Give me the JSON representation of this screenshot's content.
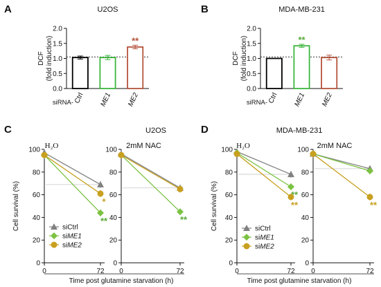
{
  "chart_data": [
    {
      "panel": "A",
      "type": "bar",
      "title": "U2OS",
      "ylabel": "DCF\n(fold induction)",
      "x_prefix": "siRNA-",
      "categories": [
        "Ctrl",
        "ME1",
        "ME2"
      ],
      "values": [
        1.03,
        1.03,
        1.38
      ],
      "errors": [
        0.05,
        0.07,
        0.06
      ],
      "ylim": [
        0,
        2.0
      ],
      "yticks": [
        "0.0",
        "0.5",
        "1.0",
        "1.5",
        "2.0"
      ],
      "ytick_values": [
        0,
        0.5,
        1.0,
        1.5,
        2.0
      ],
      "reference_line": 1.05,
      "annotations": [
        "",
        "",
        "**"
      ],
      "colors": [
        "#000000",
        "#3cb63c",
        "#b5533c"
      ]
    },
    {
      "panel": "B",
      "type": "bar",
      "title": "MDA-MB-231",
      "ylabel": "DCF\n(fold induction)",
      "x_prefix": "siRNA-",
      "categories": [
        "Ctrl",
        "ME1",
        "ME2"
      ],
      "values": [
        1.0,
        1.42,
        1.03
      ],
      "errors": [
        0.0,
        0.05,
        0.08
      ],
      "ylim": [
        0,
        2.0
      ],
      "yticks": [
        "0.0",
        "0.5",
        "1.0",
        "1.5",
        "2.0"
      ],
      "ytick_values": [
        0,
        0.5,
        1.0,
        1.5,
        2.0
      ],
      "reference_line": 1.05,
      "annotations": [
        "",
        "**",
        ""
      ],
      "colors": [
        "#000000",
        "#3cb63c",
        "#b5533c"
      ]
    },
    {
      "panel": "C",
      "type": "line",
      "title": "U2OS",
      "xlabel": "Time post glutamine starvation (h)",
      "ylabel": "Cell survival (%)",
      "ylim": [
        0,
        100
      ],
      "yticks": [
        "0",
        "20",
        "40",
        "60",
        "80",
        "100"
      ],
      "ytick_values": [
        0,
        20,
        40,
        60,
        80,
        100
      ],
      "x": [
        0,
        72
      ],
      "xticks": [
        "0",
        "72"
      ],
      "subplots": [
        {
          "title": "H₂O",
          "series": [
            {
              "name": "siCtrl",
              "values": [
                97,
                69
              ],
              "annotation": ""
            },
            {
              "name": "siME1",
              "values": [
                95,
                44
              ],
              "annotation": "**"
            },
            {
              "name": "siME2",
              "values": [
                95,
                61
              ],
              "annotation": "*"
            }
          ]
        },
        {
          "title": "2mM NAC",
          "series": [
            {
              "name": "siCtrl",
              "values": [
                96,
                66
              ],
              "annotation": ""
            },
            {
              "name": "siME1",
              "values": [
                95,
                45
              ],
              "annotation": "**"
            },
            {
              "name": "siME2",
              "values": [
                95,
                65
              ],
              "annotation": ""
            }
          ]
        }
      ],
      "legend": [
        "siCtrl",
        "siME1",
        "siME2"
      ]
    },
    {
      "panel": "D",
      "type": "line",
      "title": "MDA-MB-231",
      "xlabel": "Time post glutamine starvation (h)",
      "ylabel": "Cell survival (%)",
      "ylim": [
        0,
        100
      ],
      "yticks": [
        "0",
        "20",
        "40",
        "60",
        "80",
        "100"
      ],
      "ytick_values": [
        0,
        20,
        40,
        60,
        80,
        100
      ],
      "x": [
        0,
        72
      ],
      "xticks": [
        "0",
        "72"
      ],
      "subplots": [
        {
          "title": "H₂O",
          "series": [
            {
              "name": "siCtrl",
              "values": [
                98,
                78
              ],
              "annotation": ""
            },
            {
              "name": "siME1",
              "values": [
                97,
                67
              ],
              "annotation": "**"
            },
            {
              "name": "siME2",
              "values": [
                96,
                58
              ],
              "annotation": "**"
            }
          ]
        },
        {
          "title": "2mM NAC",
          "series": [
            {
              "name": "siCtrl",
              "values": [
                96,
                83
              ],
              "annotation": ""
            },
            {
              "name": "siME1",
              "values": [
                96,
                81
              ],
              "annotation": ""
            },
            {
              "name": "siME2",
              "values": [
                96,
                58
              ],
              "annotation": "**"
            }
          ]
        }
      ],
      "legend": [
        "siCtrl",
        "siME1",
        "siME2"
      ]
    }
  ],
  "series_colors": {
    "siCtrl": "#808080",
    "siME1": "#7cc242",
    "siME2": "#c8a020",
    "annot_me1": "#5aaa3a",
    "annot_me2": "#c8a020"
  }
}
